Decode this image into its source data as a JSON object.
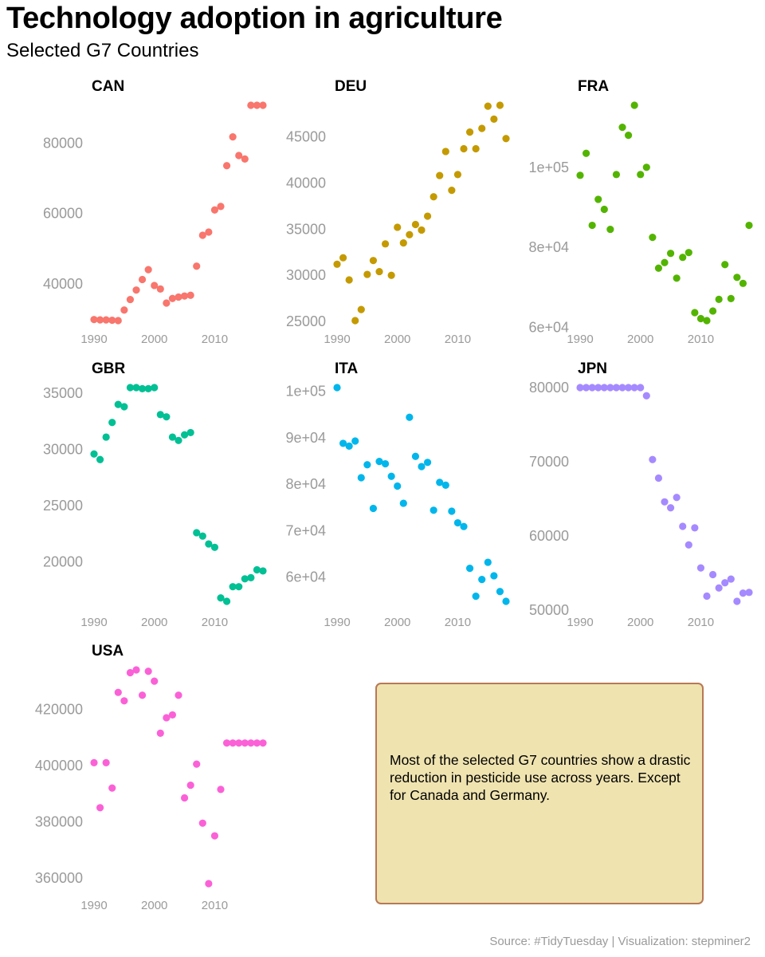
{
  "header": {
    "title": "Technology adoption in agriculture",
    "subtitle": "Selected G7 Countries"
  },
  "note": {
    "text": "Most of the selected G7 countries show a drastic reduction in pesticide use across years. Except for Canada and Germany.",
    "background": "#efe3b0",
    "border": "#b87855"
  },
  "caption": {
    "source": "Source: #TidyTuesday | Visualization: stepminer2"
  },
  "chart_data": [
    {
      "type": "scatter",
      "facet": "CAN",
      "color": "#f8766d",
      "x_ticks": [
        "1990",
        "2000",
        "2010"
      ],
      "y_ticks": [
        "40000",
        "60000",
        "80000"
      ],
      "y_tick_values": [
        40000,
        60000,
        80000
      ],
      "x": [
        1990,
        1991,
        1992,
        1993,
        1994,
        1995,
        1996,
        1997,
        1998,
        1999,
        2000,
        2001,
        2002,
        2003,
        2004,
        2005,
        2006,
        2007,
        2008,
        2009,
        2010,
        2011,
        2012,
        2013,
        2014,
        2015,
        2016,
        2017,
        2018
      ],
      "y": [
        29800,
        29700,
        29700,
        29600,
        29500,
        32500,
        35500,
        38200,
        41200,
        44000,
        39500,
        38500,
        34500,
        35800,
        36200,
        36500,
        36700,
        45000,
        53800,
        54700,
        61000,
        62000,
        73600,
        81800,
        76500,
        75500,
        90800,
        90800,
        90800
      ]
    },
    {
      "type": "scatter",
      "facet": "DEU",
      "color": "#c49a00",
      "x_ticks": [
        "1990",
        "2000",
        "2010"
      ],
      "y_ticks": [
        "25000",
        "30000",
        "35000",
        "40000",
        "45000"
      ],
      "y_tick_values": [
        25000,
        30000,
        35000,
        40000,
        45000
      ],
      "x": [
        1990,
        1991,
        1992,
        1993,
        1994,
        1995,
        1996,
        1997,
        1998,
        1999,
        2000,
        2001,
        2002,
        2003,
        2004,
        2005,
        2006,
        2007,
        2008,
        2009,
        2010,
        2011,
        2012,
        2013,
        2014,
        2015,
        2016,
        2017,
        2018
      ],
      "y": [
        31200,
        31900,
        29500,
        25100,
        26300,
        30100,
        31600,
        30400,
        33400,
        30000,
        35200,
        33500,
        34400,
        35500,
        34900,
        36400,
        38500,
        40800,
        43400,
        39200,
        40900,
        43700,
        45500,
        43700,
        45900,
        48300,
        46900,
        48400,
        44800
      ]
    },
    {
      "type": "scatter",
      "facet": "FRA",
      "color": "#53b400",
      "x_ticks": [
        "1990",
        "2000",
        "2010"
      ],
      "y_ticks": [
        "6e+04",
        "8e+04",
        "1e+05"
      ],
      "y_tick_values": [
        60000,
        80000,
        100000
      ],
      "x": [
        1990,
        1991,
        1992,
        1993,
        1994,
        1995,
        1996,
        1997,
        1998,
        1999,
        2000,
        2001,
        2002,
        2003,
        2004,
        2005,
        2006,
        2007,
        2008,
        2009,
        2010,
        2011,
        2012,
        2013,
        2014,
        2015,
        2016,
        2017,
        2018
      ],
      "y": [
        98000,
        103500,
        85500,
        92000,
        89500,
        84500,
        98200,
        110000,
        108000,
        115500,
        98200,
        100000,
        82500,
        74800,
        76200,
        78500,
        72300,
        77500,
        78700,
        63700,
        62200,
        61700,
        64100,
        67000,
        75700,
        67200,
        72500,
        71000,
        85500
      ]
    },
    {
      "type": "scatter",
      "facet": "GBR",
      "color": "#00c094",
      "x_ticks": [
        "1990",
        "2000",
        "2010"
      ],
      "y_ticks": [
        "20000",
        "25000",
        "30000",
        "35000"
      ],
      "y_tick_values": [
        20000,
        25000,
        30000,
        35000
      ],
      "x": [
        1990,
        1991,
        1992,
        1993,
        1994,
        1995,
        1996,
        1997,
        1998,
        1999,
        2000,
        2001,
        2002,
        2003,
        2004,
        2005,
        2006,
        2007,
        2008,
        2009,
        2010,
        2011,
        2012,
        2013,
        2014,
        2015,
        2016,
        2017,
        2018
      ],
      "y": [
        29600,
        29100,
        31100,
        32400,
        34000,
        33800,
        35500,
        35500,
        35400,
        35400,
        35500,
        33100,
        32900,
        31100,
        30800,
        31300,
        31500,
        22600,
        22300,
        21600,
        21300,
        16800,
        16500,
        17800,
        17800,
        18500,
        18600,
        19300,
        19200
      ]
    },
    {
      "type": "scatter",
      "facet": "ITA",
      "color": "#00b6eb",
      "x_ticks": [
        "1990",
        "2000",
        "2010"
      ],
      "y_ticks": [
        "6e+04",
        "7e+04",
        "8e+04",
        "9e+04",
        "1e+05"
      ],
      "y_tick_values": [
        60000,
        70000,
        80000,
        90000,
        100000
      ],
      "x": [
        1990,
        1991,
        1992,
        1993,
        1994,
        1995,
        1996,
        1997,
        1998,
        1999,
        2000,
        2001,
        2002,
        2003,
        2004,
        2005,
        2006,
        2007,
        2008,
        2009,
        2010,
        2011,
        2012,
        2013,
        2014,
        2015,
        2016,
        2017,
        2018
      ],
      "y": [
        100800,
        88800,
        88200,
        89300,
        81400,
        84200,
        74800,
        84900,
        84400,
        81700,
        79600,
        75900,
        94400,
        86000,
        83800,
        84700,
        74400,
        80400,
        79800,
        74200,
        71700,
        70900,
        61900,
        55900,
        59500,
        63200,
        60300,
        56900,
        54800
      ]
    },
    {
      "type": "scatter",
      "facet": "JPN",
      "color": "#a58aff",
      "x_ticks": [
        "1990",
        "2000",
        "2010"
      ],
      "y_ticks": [
        "50000",
        "60000",
        "70000",
        "80000"
      ],
      "y_tick_values": [
        50000,
        60000,
        70000,
        80000
      ],
      "x": [
        1990,
        1991,
        1992,
        1993,
        1994,
        1995,
        1996,
        1997,
        1998,
        1999,
        2000,
        2001,
        2002,
        2003,
        2004,
        2005,
        2006,
        2007,
        2008,
        2009,
        2010,
        2011,
        2012,
        2013,
        2014,
        2015,
        2016,
        2017,
        2018
      ],
      "y": [
        80000,
        80000,
        80000,
        80000,
        80000,
        80000,
        80000,
        80000,
        80000,
        80000,
        80000,
        78900,
        70300,
        67800,
        64600,
        63800,
        65200,
        61300,
        58800,
        61100,
        55700,
        51900,
        54800,
        53000,
        53700,
        54200,
        51200,
        52300,
        52400
      ]
    },
    {
      "type": "scatter",
      "facet": "USA",
      "color": "#fb61d7",
      "x_ticks": [
        "1990",
        "2000",
        "2010"
      ],
      "y_ticks": [
        "360000",
        "380000",
        "400000",
        "420000"
      ],
      "y_tick_values": [
        360000,
        380000,
        400000,
        420000
      ],
      "x": [
        1990,
        1991,
        1992,
        1993,
        1994,
        1995,
        1996,
        1997,
        1998,
        1999,
        2000,
        2001,
        2002,
        2003,
        2004,
        2005,
        2006,
        2007,
        2008,
        2009,
        2010,
        2011,
        2012,
        2013,
        2014,
        2015,
        2016,
        2017,
        2018
      ],
      "y": [
        401000,
        385000,
        401000,
        392000,
        426000,
        423000,
        433000,
        434000,
        425000,
        433500,
        430000,
        411500,
        417000,
        418000,
        425000,
        388500,
        393000,
        400500,
        379500,
        358000,
        375000,
        391500,
        408000,
        408000,
        408000,
        408000,
        408000,
        408000,
        408000
      ]
    }
  ]
}
